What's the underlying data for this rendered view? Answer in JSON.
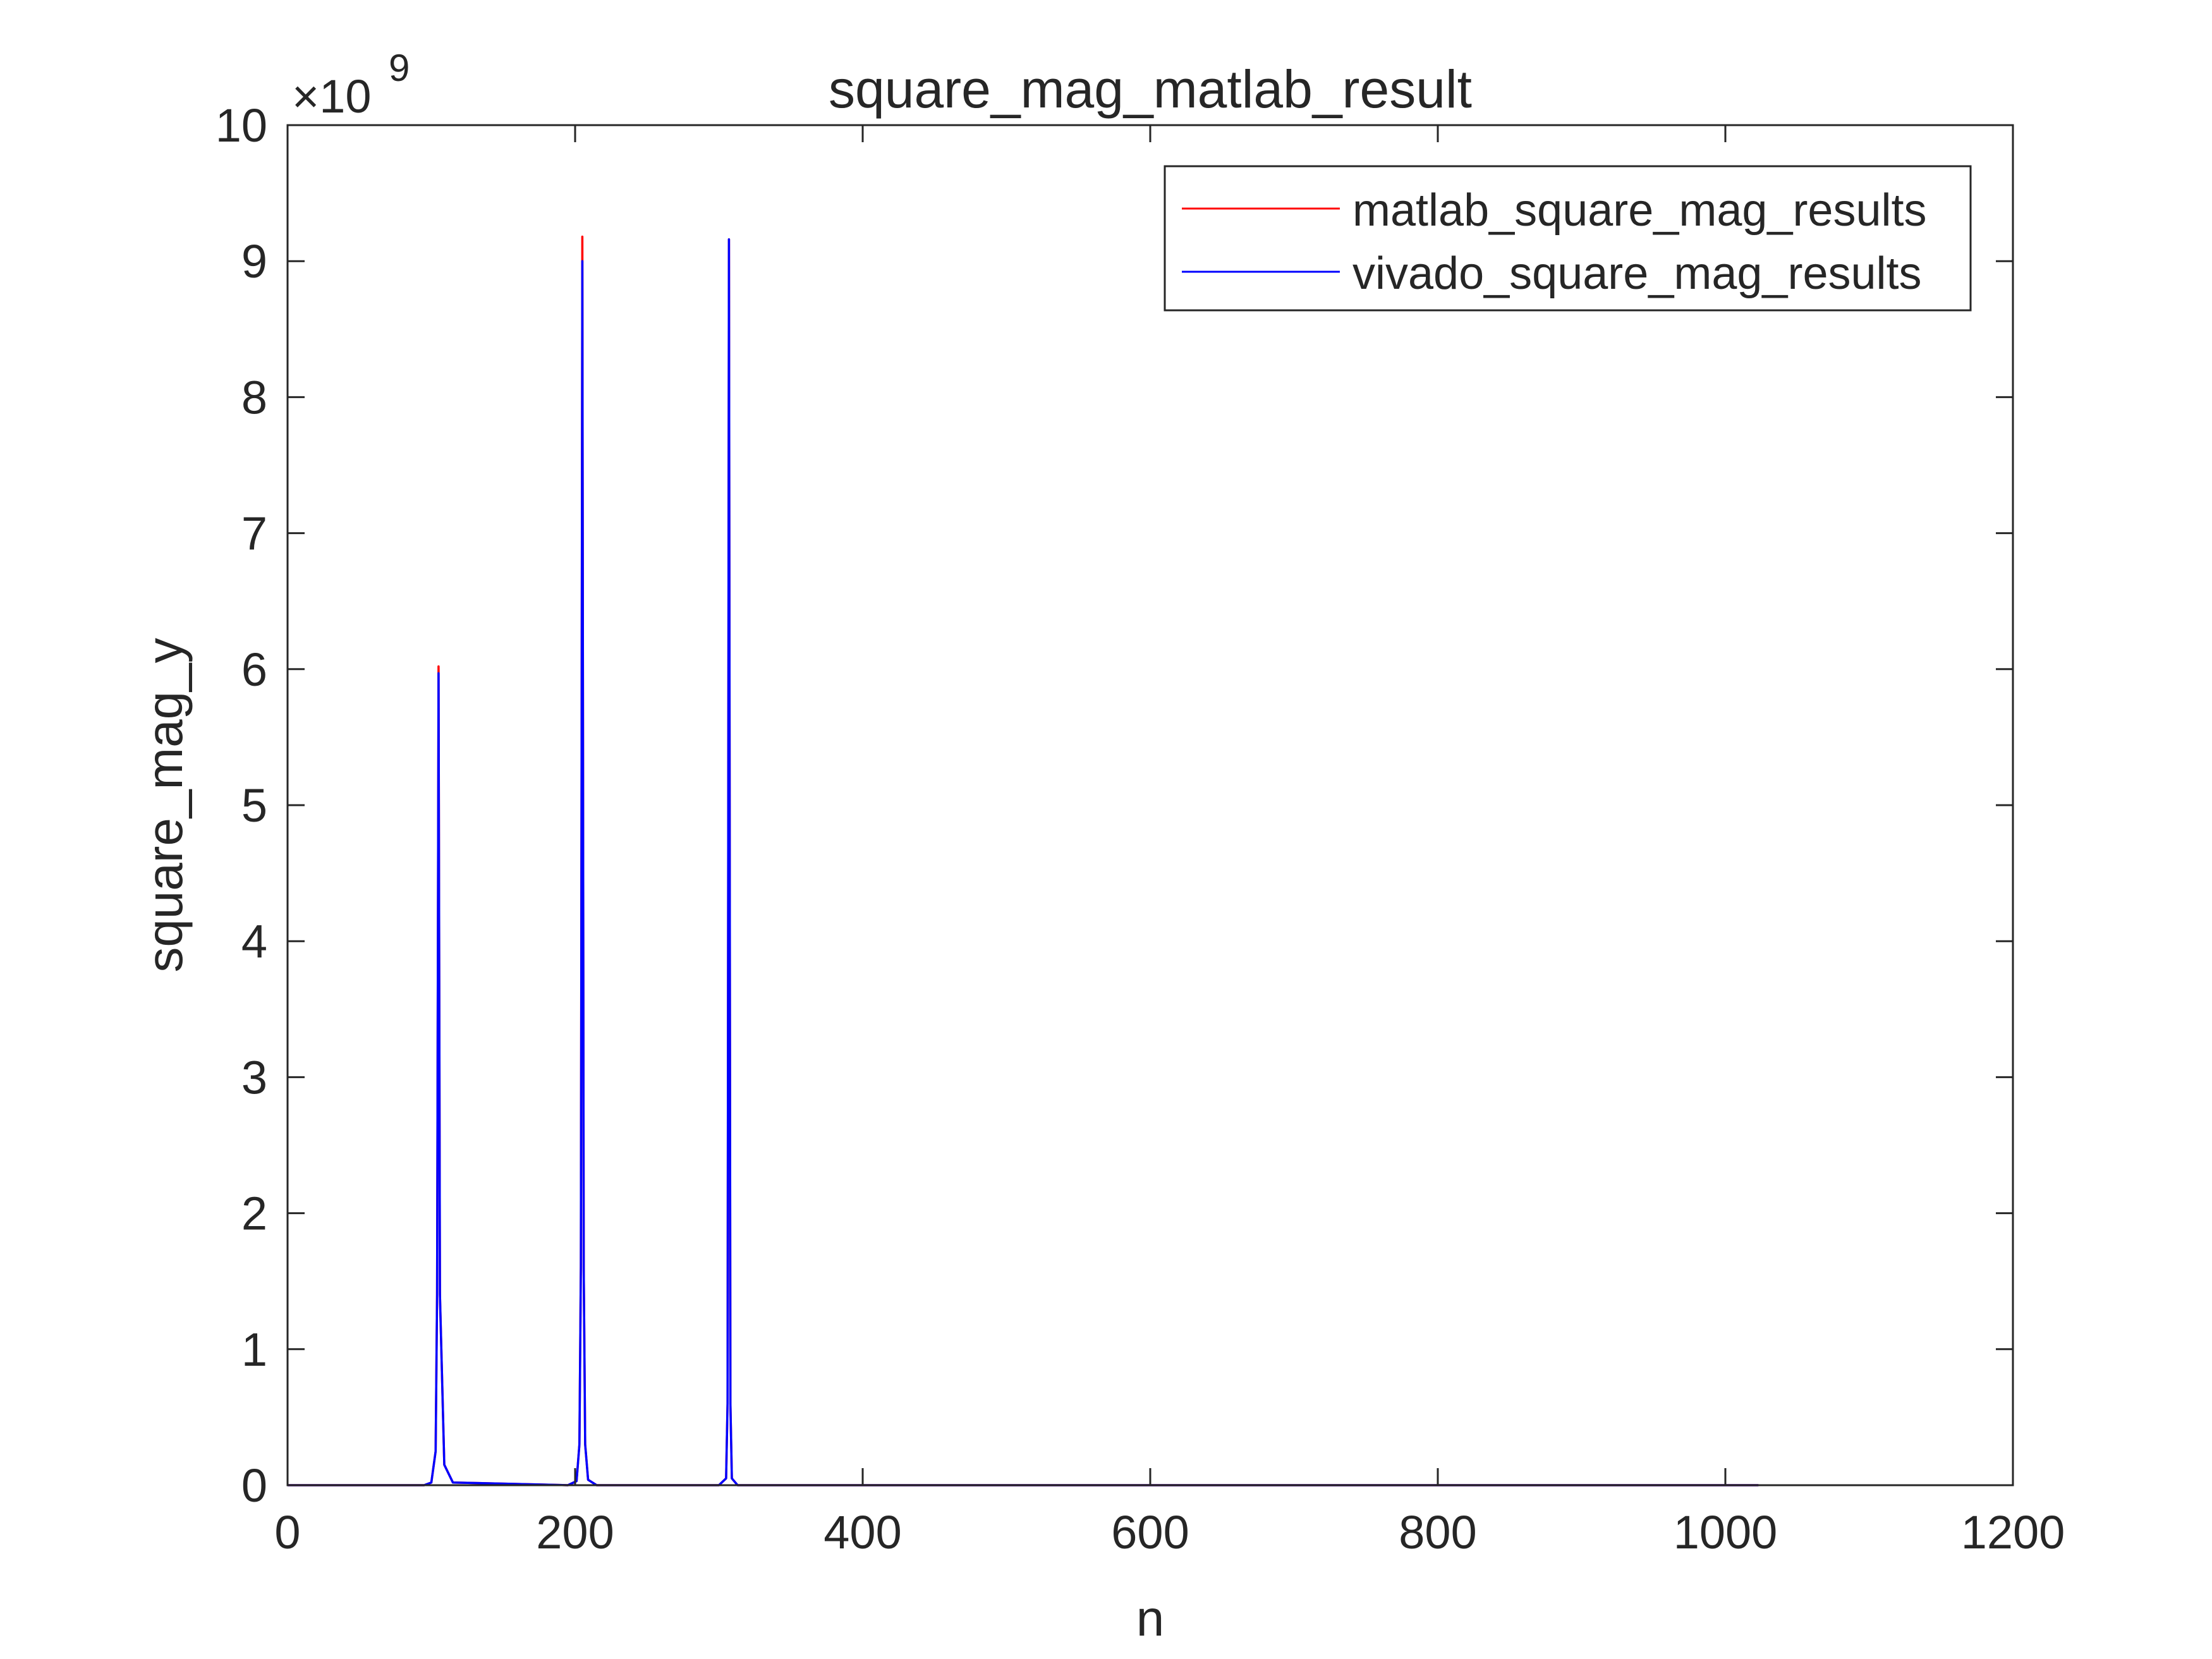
{
  "chart_data": {
    "type": "line",
    "title": "square_mag_matlab_result",
    "xlabel": "n",
    "ylabel": "square_mag_y",
    "xlim": [
      0,
      1200
    ],
    "ylim": [
      0,
      10
    ],
    "y_scale_exponent_text": "×10",
    "y_scale_exponent_power": "9",
    "x_ticks": [
      0,
      200,
      400,
      600,
      800,
      1000,
      1200
    ],
    "x_tick_labels": [
      "0",
      "200",
      "400",
      "600",
      "800",
      "1000",
      "1200"
    ],
    "y_ticks": [
      0,
      1,
      2,
      3,
      4,
      5,
      6,
      7,
      8,
      9,
      10
    ],
    "y_tick_labels": [
      "0",
      "1",
      "2",
      "3",
      "4",
      "5",
      "6",
      "7",
      "8",
      "9",
      "10"
    ],
    "grid": false,
    "box": true,
    "legend_position": "top-right",
    "series": [
      {
        "name": "matlab_square_mag_results",
        "color": "#ff0000",
        "x": [
          0,
          95,
          100,
          103,
          104,
          105,
          106,
          109,
          115,
          195,
          201,
          203,
          204,
          205,
          206,
          207,
          209,
          215,
          300,
          305,
          306,
          307,
          308,
          309,
          313,
          1023
        ],
        "values": [
          0,
          0,
          0.02,
          0.25,
          1.4,
          6.02,
          1.4,
          0.15,
          0.02,
          0,
          0.03,
          0.3,
          1.6,
          9.18,
          1.6,
          0.3,
          0.04,
          0,
          0,
          0.05,
          0.6,
          9.16,
          0.6,
          0.05,
          0,
          0
        ]
      },
      {
        "name": "vivado_square_mag_results",
        "color": "#0000ff",
        "x": [
          0,
          95,
          100,
          103,
          104,
          105,
          106,
          109,
          115,
          195,
          201,
          203,
          204,
          205,
          206,
          207,
          209,
          215,
          300,
          305,
          306,
          307,
          308,
          309,
          313,
          1023
        ],
        "values": [
          0,
          0,
          0.02,
          0.25,
          1.4,
          5.97,
          1.4,
          0.15,
          0.02,
          0,
          0.03,
          0.3,
          1.6,
          9.0,
          1.6,
          0.3,
          0.04,
          0,
          0,
          0.05,
          0.6,
          9.16,
          0.6,
          0.05,
          0,
          0
        ]
      }
    ]
  }
}
